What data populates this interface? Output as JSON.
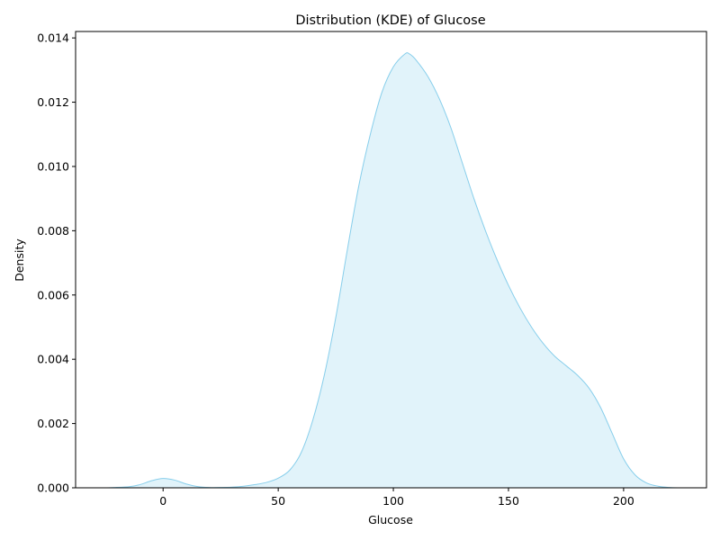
{
  "chart_data": {
    "type": "area",
    "title": "Distribution (KDE) of Glucose",
    "xlabel": "Glucose",
    "ylabel": "Density",
    "xlim": [
      -38,
      236
    ],
    "ylim": [
      0,
      0.0142
    ],
    "xticks": [
      0,
      50,
      100,
      150,
      200
    ],
    "xtick_labels": [
      "0",
      "50",
      "100",
      "150",
      "200"
    ],
    "yticks": [
      0,
      0.002,
      0.004,
      0.006,
      0.008,
      0.01,
      0.012,
      0.014
    ],
    "ytick_labels": [
      "0.000",
      "0.002",
      "0.004",
      "0.006",
      "0.008",
      "0.010",
      "0.012",
      "0.014"
    ],
    "grid": false,
    "line_color": "#87ceeb",
    "fill_color": "#87ceeb",
    "fill_opacity": 0.25,
    "series": [
      {
        "x": [
          -25,
          -15,
          -10,
          -5,
          0,
          5,
          10,
          15,
          20,
          25,
          30,
          35,
          40,
          45,
          50,
          55,
          60,
          65,
          70,
          75,
          80,
          85,
          90,
          95,
          100,
          105,
          107,
          110,
          115,
          120,
          125,
          130,
          135,
          140,
          145,
          150,
          155,
          160,
          165,
          170,
          175,
          180,
          185,
          190,
          195,
          200,
          205,
          210,
          215,
          220,
          224
        ],
        "y": [
          0.0,
          3e-05,
          0.0001,
          0.00022,
          0.00029,
          0.00024,
          0.00012,
          4e-05,
          1e-05,
          1e-05,
          2e-05,
          5e-05,
          0.0001,
          0.00017,
          0.0003,
          0.00055,
          0.0011,
          0.0021,
          0.0035,
          0.0053,
          0.0074,
          0.0094,
          0.011,
          0.0123,
          0.0131,
          0.0135,
          0.0135,
          0.0133,
          0.0128,
          0.0121,
          0.0112,
          0.0101,
          0.009,
          0.008,
          0.0071,
          0.0063,
          0.0056,
          0.005,
          0.0045,
          0.0041,
          0.0038,
          0.0035,
          0.0031,
          0.0025,
          0.0017,
          0.0009,
          0.0004,
          0.00015,
          5e-05,
          1e-05,
          0.0
        ]
      }
    ]
  }
}
